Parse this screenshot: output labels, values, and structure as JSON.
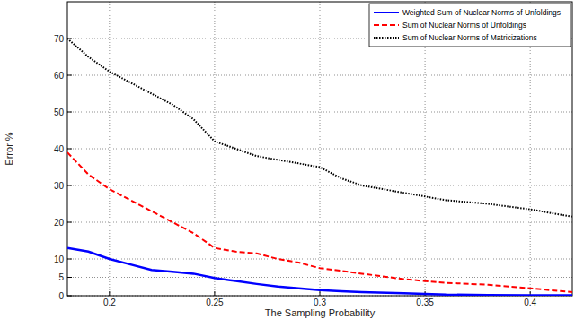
{
  "chart_data": {
    "type": "line",
    "x_label": "The Sampling Probability",
    "y_label": "Error %",
    "x": [
      0.18,
      0.19,
      0.2,
      0.21,
      0.22,
      0.23,
      0.24,
      0.25,
      0.26,
      0.27,
      0.28,
      0.29,
      0.3,
      0.31,
      0.32,
      0.34,
      0.36,
      0.38,
      0.4,
      0.42
    ],
    "series": [
      {
        "name": "Weighted Sum of Nuclear Norms of Unfoldings",
        "color": "#0000ff",
        "line_style": "solid",
        "values": [
          13,
          12,
          10,
          8.5,
          7,
          6.5,
          6,
          4.8,
          4,
          3.2,
          2.5,
          2,
          1.5,
          1.2,
          1,
          0.7,
          0.3,
          0.2,
          0.1,
          0.1
        ]
      },
      {
        "name": "Sum of Nuclear Norms of Unfoldings",
        "color": "#ff0000",
        "line_style": "dashed",
        "values": [
          39,
          33,
          29,
          26,
          23,
          20,
          17,
          13,
          12,
          11.5,
          10,
          9,
          7.5,
          6.8,
          6,
          4.5,
          3.5,
          3,
          2,
          1
        ]
      },
      {
        "name": "Sum of Nuclear Norms of Matricizations",
        "color": "#000000",
        "line_style": "dotted",
        "values": [
          70,
          65,
          61,
          58,
          55,
          52,
          48,
          42,
          40,
          38,
          37,
          36,
          35,
          32,
          30,
          28,
          26,
          25,
          23.5,
          21.5
        ]
      }
    ],
    "xlim": [
      0.18,
      0.42
    ],
    "xticks": [
      0.2,
      0.25,
      0.3,
      0.35,
      0.4
    ],
    "ylim": [
      0,
      80
    ],
    "yticks": [
      0,
      5,
      10,
      20,
      30,
      40,
      50,
      60,
      70
    ],
    "grid": true,
    "legend": "top-right"
  }
}
